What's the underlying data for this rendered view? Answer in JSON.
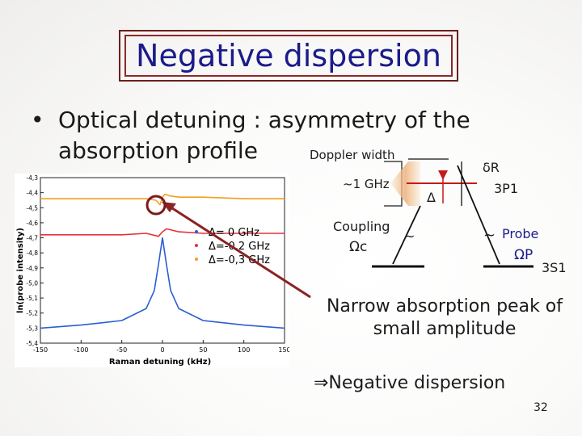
{
  "title": "Negative dispersion",
  "bullet": {
    "symbol": "•",
    "line1": "Optical detuning : asymmetry of the",
    "line2": "absorption profile"
  },
  "diagram": {
    "doppler_width": "Doppler width",
    "one_ghz": "~1 GHz",
    "coupling": "Coupling",
    "omega_c": "Ωc",
    "delta": "Δ",
    "delta_r": "δR",
    "level_upper": "3P1",
    "level_lower": "3S1",
    "probe": "Probe",
    "omega_p": "ΩP",
    "tilde": "~"
  },
  "notes": {
    "narrow_line1": "Narrow absorption peak of",
    "narrow_line2": "small amplitude",
    "negative": "⇒Negative dispersion"
  },
  "page_number": "32",
  "chart_data": {
    "type": "line",
    "xlabel": "Raman detuning (kHz)",
    "ylabel": "ln(probe intensity)",
    "xlim": [
      -150,
      150
    ],
    "ylim": [
      -5.4,
      -4.3
    ],
    "x_ticks": [
      "-150",
      "-100",
      "-50",
      "0",
      "50",
      "100",
      "150"
    ],
    "y_ticks": [
      "-4,3",
      "-4,4",
      "-4,5",
      "-4,6",
      "-4,7",
      "-4,8",
      "-4,9",
      "-5,0",
      "-5,1",
      "-5,2",
      "-5,3",
      "-5,4"
    ],
    "legend": [
      "Δ=   0 GHz",
      "Δ=-0,2 GHz",
      "Δ=-0,3 GHz"
    ],
    "legend_colors": [
      "#2b5fd0",
      "#e8303a",
      "#f0a020"
    ],
    "series": [
      {
        "name": "Δ=   0 GHz",
        "x": [
          -150,
          -100,
          -50,
          -20,
          -10,
          -5,
          0,
          5,
          10,
          20,
          50,
          100,
          150
        ],
        "y": [
          -5.3,
          -5.28,
          -5.25,
          -5.17,
          -5.05,
          -4.88,
          -4.7,
          -4.88,
          -5.05,
          -5.17,
          -5.25,
          -5.28,
          -5.3
        ]
      },
      {
        "name": "Δ=-0,2 GHz",
        "x": [
          -150,
          -100,
          -50,
          -20,
          -5,
          0,
          5,
          20,
          50,
          100,
          150
        ],
        "y": [
          -4.68,
          -4.68,
          -4.68,
          -4.67,
          -4.69,
          -4.66,
          -4.64,
          -4.66,
          -4.67,
          -4.67,
          -4.67
        ]
      },
      {
        "name": "Δ=-0,3 GHz",
        "x": [
          -150,
          -100,
          -50,
          -20,
          -8,
          -3,
          0,
          3,
          8,
          20,
          50,
          100,
          150
        ],
        "y": [
          -4.44,
          -4.44,
          -4.44,
          -4.44,
          -4.45,
          -4.48,
          -4.43,
          -4.41,
          -4.42,
          -4.43,
          -4.43,
          -4.44,
          -4.44
        ]
      }
    ]
  },
  "colors": {
    "title_text": "#1b1b8a",
    "frame": "#8a2a2a",
    "arrow": "#8b2323"
  }
}
